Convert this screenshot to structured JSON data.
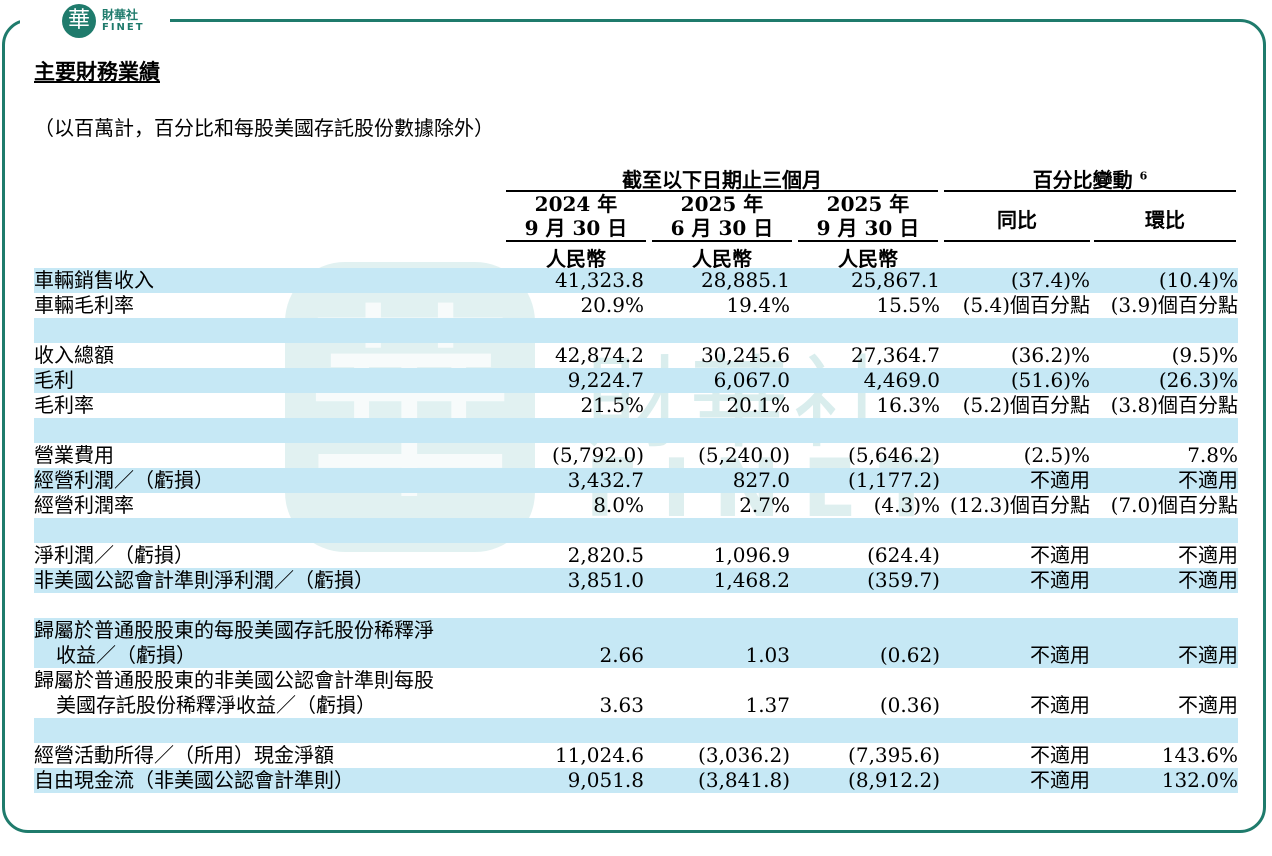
{
  "brand": {
    "logo_char": "華",
    "name_cn": "財華社",
    "name_en": "FINET"
  },
  "watermark": {
    "char": "華",
    "name_cn": "財華社",
    "name_en": "FINET"
  },
  "title": "主要財務業績",
  "note": "（以百萬計，百分比和每股美國存託股份數據除外）",
  "header": {
    "group1": "截至以下日期止三個月",
    "group2": "百分比變動",
    "group2_sup": "6",
    "col1_year": "2024 年",
    "col1_date": "9 月 30 日",
    "col1_cur": "人民幣",
    "col2_year": "2025 年",
    "col2_date": "6 月 30 日",
    "col2_cur": "人民幣",
    "col3_year": "2025 年",
    "col3_date": "9 月 30 日",
    "col3_cur": "人民幣",
    "yoy": "同比",
    "qoq": "環比"
  },
  "rows": [
    {
      "label": "車輛銷售收入",
      "c1": "41,323.8",
      "c2": "28,885.1",
      "c3": "25,867.1",
      "c4": "(37.4)%",
      "c5": "(10.4)%"
    },
    {
      "label": "車輛毛利率",
      "c1": "20.9%",
      "c2": "19.4%",
      "c3": "15.5%",
      "c4": "(5.4)個百分點",
      "c5": "(3.9)個百分點"
    },
    {
      "label": "收入總額",
      "c1": "42,874.2",
      "c2": "30,245.6",
      "c3": "27,364.7",
      "c4": "(36.2)%",
      "c5": "(9.5)%"
    },
    {
      "label": "毛利",
      "c1": "9,224.7",
      "c2": "6,067.0",
      "c3": "4,469.0",
      "c4": "(51.6)%",
      "c5": "(26.3)%"
    },
    {
      "label": "毛利率",
      "c1": "21.5%",
      "c2": "20.1%",
      "c3": "16.3%",
      "c4": "(5.2)個百分點",
      "c5": "(3.8)個百分點"
    },
    {
      "label": "營業費用",
      "c1": "(5,792.0)",
      "c2": "(5,240.0)",
      "c3": "(5,646.2)",
      "c4": "(2.5)%",
      "c5": "7.8%"
    },
    {
      "label": "經營利潤／（虧損）",
      "c1": "3,432.7",
      "c2": "827.0",
      "c3": "(1,177.2)",
      "c4": "不適用",
      "c5": "不適用"
    },
    {
      "label": "經營利潤率",
      "c1": "8.0%",
      "c2": "2.7%",
      "c3": "(4.3)%",
      "c4": "(12.3)個百分點",
      "c5": "(7.0)個百分點"
    },
    {
      "label": "淨利潤／（虧損）",
      "c1": "2,820.5",
      "c2": "1,096.9",
      "c3": "(624.4)",
      "c4": "不適用",
      "c5": "不適用"
    },
    {
      "label": "非美國公認會計準則淨利潤／（虧損）",
      "c1": "3,851.0",
      "c2": "1,468.2",
      "c3": "(359.7)",
      "c4": "不適用",
      "c5": "不適用"
    },
    {
      "label": "歸屬於普通股股東的每股美國存託股份稀釋淨",
      "label2": "收益／（虧損）",
      "c1": "2.66",
      "c2": "1.03",
      "c3": "(0.62)",
      "c4": "不適用",
      "c5": "不適用"
    },
    {
      "label": "歸屬於普通股股東的非美國公認會計準則每股",
      "label2": "美國存託股份稀釋淨收益／（虧損）",
      "c1": "3.63",
      "c2": "1.37",
      "c3": "(0.36)",
      "c4": "不適用",
      "c5": "不適用"
    },
    {
      "label": "經營活動所得／（所用）現金淨額",
      "c1": "11,024.6",
      "c2": "(3,036.2)",
      "c3": "(7,395.6)",
      "c4": "不適用",
      "c5": "143.6%"
    },
    {
      "label": "自由現金流（非美國公認會計準則）",
      "c1": "9,051.8",
      "c2": "(3,841.8)",
      "c3": "(8,912.2)",
      "c4": "不適用",
      "c5": "132.0%"
    }
  ]
}
